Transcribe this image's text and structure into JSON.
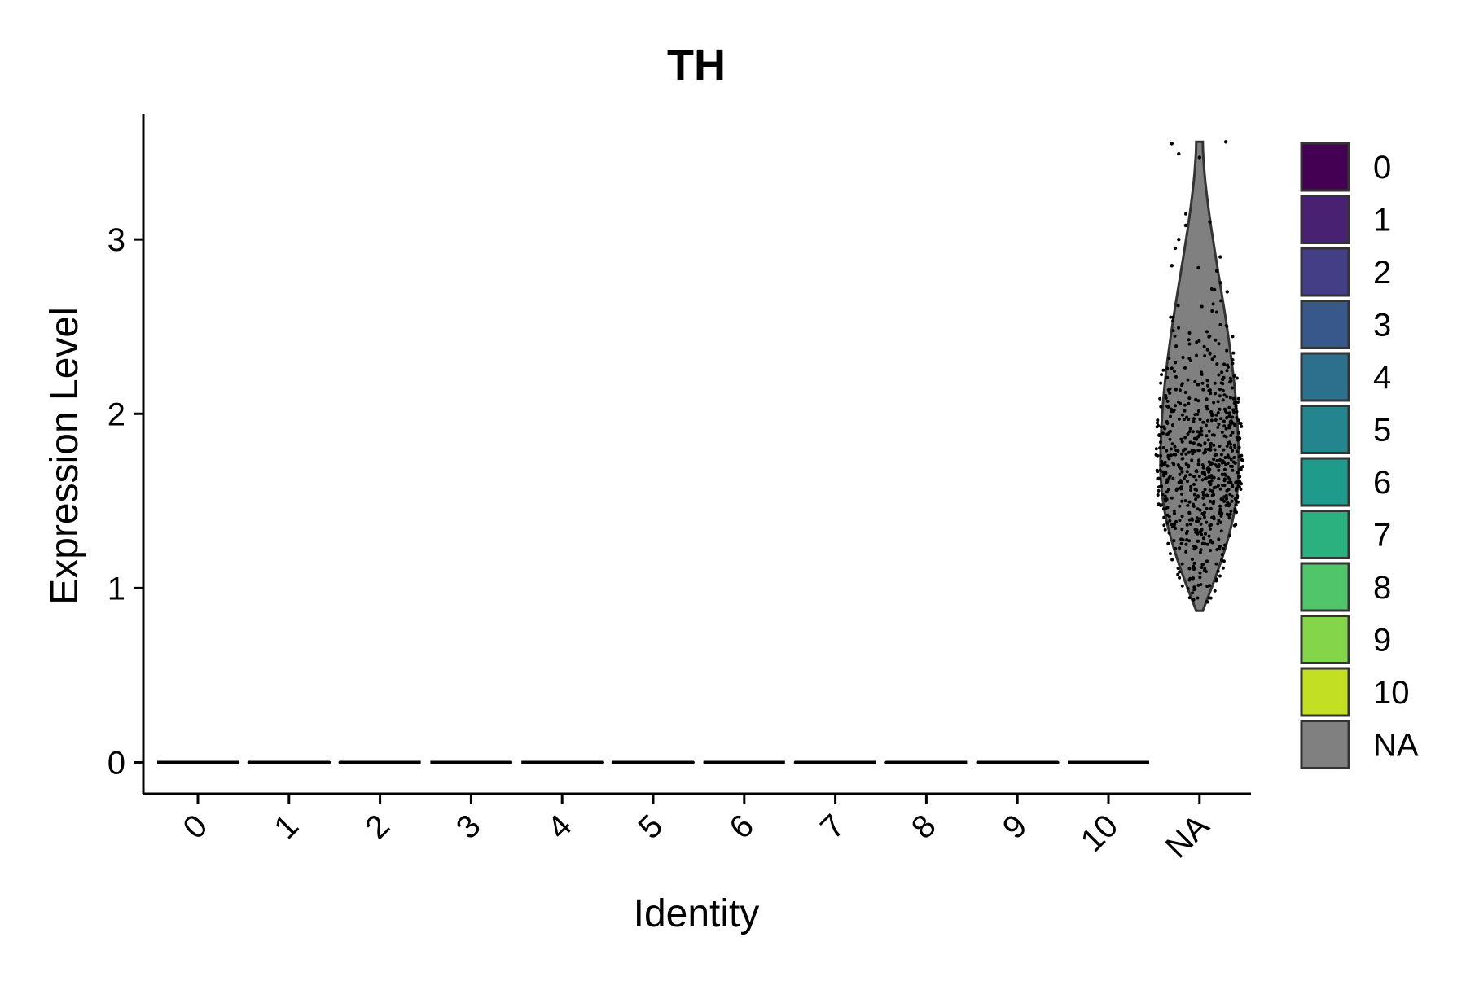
{
  "chart_data": {
    "type": "violin",
    "title": "TH",
    "xlabel": "Identity",
    "ylabel": "Expression Level",
    "categories": [
      "0",
      "1",
      "2",
      "3",
      "4",
      "5",
      "6",
      "7",
      "8",
      "9",
      "10",
      "NA"
    ],
    "ylim": [
      -0.18,
      3.72
    ],
    "yticks": [
      0,
      1,
      2,
      3
    ],
    "series": [
      {
        "category": "0",
        "min": 0,
        "max": 0,
        "median": 0
      },
      {
        "category": "1",
        "min": 0,
        "max": 0,
        "median": 0
      },
      {
        "category": "2",
        "min": 0,
        "max": 0,
        "median": 0
      },
      {
        "category": "3",
        "min": 0,
        "max": 0,
        "median": 0
      },
      {
        "category": "4",
        "min": 0,
        "max": 0,
        "median": 0
      },
      {
        "category": "5",
        "min": 0,
        "max": 0,
        "median": 0
      },
      {
        "category": "6",
        "min": 0,
        "max": 0,
        "median": 0
      },
      {
        "category": "7",
        "min": 0,
        "max": 0,
        "median": 0
      },
      {
        "category": "8",
        "min": 0,
        "max": 0,
        "median": 0
      },
      {
        "category": "9",
        "min": 0,
        "max": 0,
        "median": 0
      },
      {
        "category": "10",
        "min": 0,
        "max": 0,
        "median": 0
      },
      {
        "category": "NA",
        "min": 0.87,
        "max": 3.56,
        "median": 1.7
      }
    ],
    "legend": {
      "position": "right",
      "entries": [
        {
          "label": "0",
          "color": "#440154"
        },
        {
          "label": "1",
          "color": "#482173"
        },
        {
          "label": "2",
          "color": "#433E85"
        },
        {
          "label": "3",
          "color": "#38588C"
        },
        {
          "label": "4",
          "color": "#2D708E"
        },
        {
          "label": "5",
          "color": "#25858E"
        },
        {
          "label": "6",
          "color": "#1E9B8A"
        },
        {
          "label": "7",
          "color": "#2BB07F"
        },
        {
          "label": "8",
          "color": "#51C56A"
        },
        {
          "label": "9",
          "color": "#85D54A"
        },
        {
          "label": "10",
          "color": "#C2DF23"
        },
        {
          "label": "NA",
          "color": "#808080"
        }
      ]
    },
    "grid": false
  }
}
